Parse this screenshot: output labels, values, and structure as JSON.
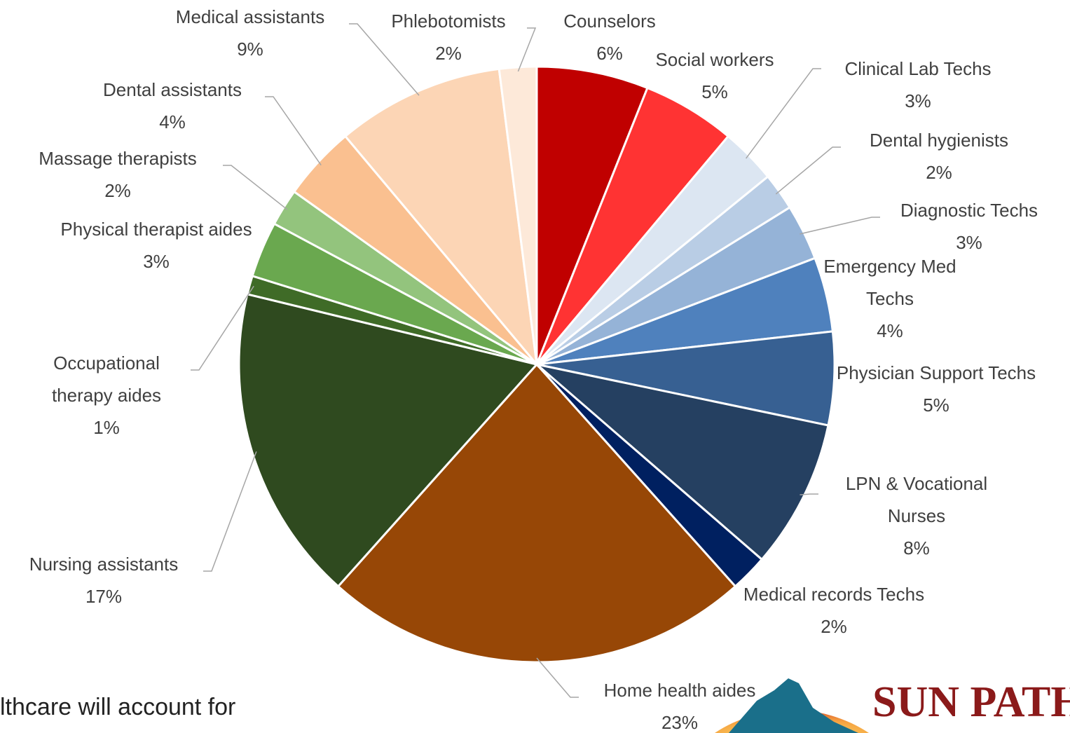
{
  "chart_data": {
    "type": "pie",
    "categories": [
      "Counselors",
      "Social workers",
      "Clinical Lab Techs",
      "Dental hygienists",
      "Diagnostic Techs",
      "Emergency Med Techs",
      "Physician Support Techs",
      "LPN & Vocational Nurses",
      "Medical records Techs",
      "Home health aides",
      "Nursing assistants",
      "Occupational therapy aides",
      "Physical therapist aides",
      "Massage therapists",
      "Dental assistants",
      "Medical assistants",
      "Phlebotomists"
    ],
    "values": [
      6,
      5,
      3,
      2,
      3,
      4,
      5,
      8,
      2,
      23,
      17,
      1,
      3,
      2,
      4,
      9,
      2
    ],
    "value_labels": [
      "6%",
      "5%",
      "3%",
      "2%",
      "3%",
      "4%",
      "5%",
      "8%",
      "2%",
      "23%",
      "17%",
      "1%",
      "3%",
      "2%",
      "4%",
      "9%",
      "2%"
    ],
    "colors": [
      "#c00000",
      "#ff3333",
      "#dce6f2",
      "#b9cde5",
      "#95b3d7",
      "#4f81bd",
      "#376092",
      "#254061",
      "#002060",
      "#974706",
      "#2f4a1f",
      "#3f6b27",
      "#6aa84f",
      "#93c47d",
      "#fac090",
      "#fcd5b5",
      "#fde9d9"
    ]
  },
  "footer_text": "lthcare will account for",
  "logo_text": "SUN PATH"
}
